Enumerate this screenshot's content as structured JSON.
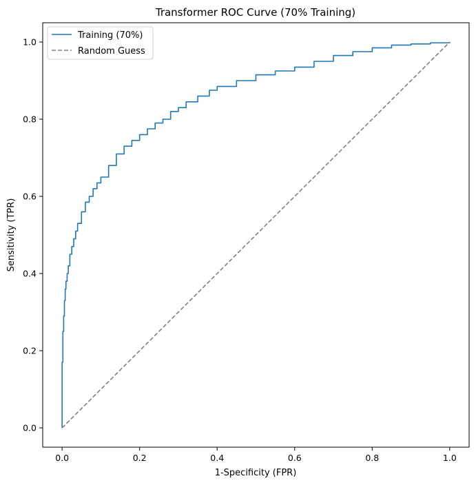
{
  "chart_data": {
    "type": "line",
    "title": "Transformer ROC Curve (70% Training)",
    "xlabel": "1-Specificity (FPR)",
    "ylabel": "Sensitivity (TPR)",
    "xlim": [
      -0.05,
      1.05
    ],
    "ylim": [
      -0.05,
      1.05
    ],
    "xticks": [
      "0.0",
      "0.2",
      "0.4",
      "0.6",
      "0.8",
      "1.0"
    ],
    "yticks": [
      "0.0",
      "0.2",
      "0.4",
      "0.6",
      "0.8",
      "1.0"
    ],
    "grid": false,
    "legend_position": "upper-left",
    "series": [
      {
        "name": "Training (70%)",
        "color": "#1f77b4",
        "style": "solid",
        "x": [
          0.0,
          0.0,
          0.002,
          0.004,
          0.006,
          0.008,
          0.01,
          0.013,
          0.016,
          0.02,
          0.025,
          0.03,
          0.035,
          0.04,
          0.05,
          0.06,
          0.07,
          0.08,
          0.09,
          0.1,
          0.12,
          0.14,
          0.16,
          0.18,
          0.2,
          0.22,
          0.24,
          0.26,
          0.28,
          0.3,
          0.32,
          0.35,
          0.38,
          0.4,
          0.45,
          0.5,
          0.55,
          0.6,
          0.65,
          0.7,
          0.75,
          0.8,
          0.85,
          0.9,
          0.95,
          1.0
        ],
        "y": [
          0.0,
          0.17,
          0.25,
          0.29,
          0.33,
          0.36,
          0.38,
          0.4,
          0.42,
          0.45,
          0.47,
          0.49,
          0.51,
          0.53,
          0.56,
          0.585,
          0.6,
          0.62,
          0.635,
          0.65,
          0.68,
          0.71,
          0.73,
          0.745,
          0.76,
          0.775,
          0.79,
          0.8,
          0.82,
          0.83,
          0.845,
          0.86,
          0.875,
          0.885,
          0.9,
          0.915,
          0.925,
          0.935,
          0.95,
          0.965,
          0.975,
          0.985,
          0.992,
          0.995,
          0.998,
          1.0
        ]
      },
      {
        "name": "Random Guess",
        "color": "#808080",
        "style": "dashed",
        "x": [
          0.0,
          1.0
        ],
        "y": [
          0.0,
          1.0
        ]
      }
    ]
  }
}
